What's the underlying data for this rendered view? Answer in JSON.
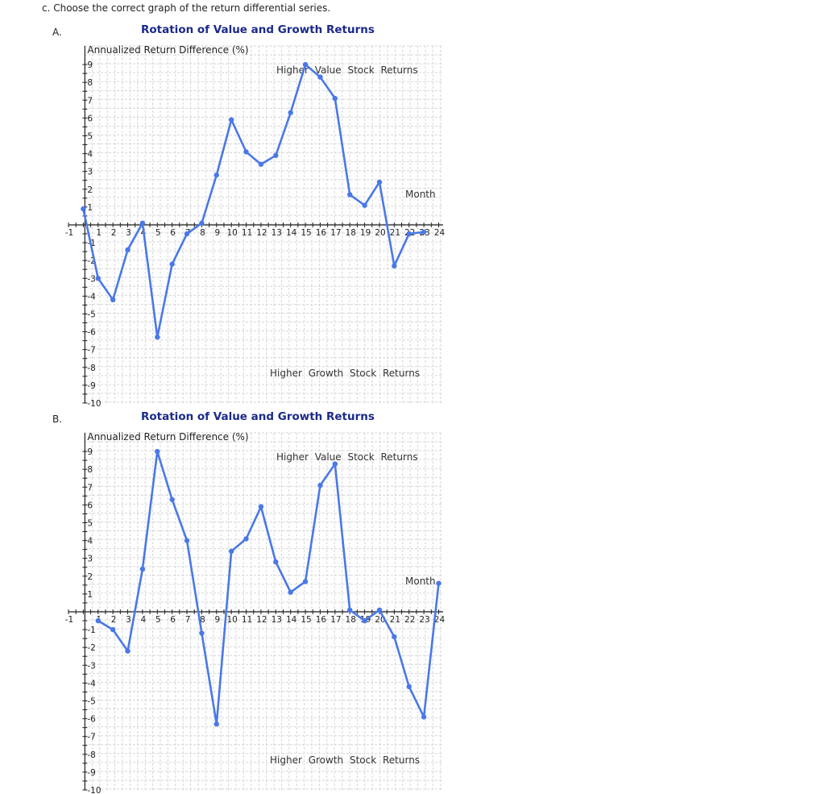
{
  "question": "c. Choose the correct graph of the return differential series.",
  "options": [
    {
      "label": "A."
    },
    {
      "label": "B."
    }
  ],
  "chart_data": [
    {
      "type": "line",
      "title": "Rotation of Value and Growth Returns",
      "ylabel": "Annualized Return Difference (%)",
      "xlabel": "Month",
      "annotations": [
        "Higher Value Stock Returns",
        "Higher Growth Stock Returns"
      ],
      "xlim": [
        -1,
        24.3
      ],
      "ylim": [
        -10,
        9
      ],
      "grid": true,
      "color": "#4a78e8",
      "x": [
        0,
        1,
        2,
        3,
        4,
        5,
        6,
        7,
        8,
        9,
        10,
        11,
        12,
        13,
        14,
        15,
        16,
        17,
        18,
        19,
        20,
        21,
        22,
        23
      ],
      "values": [
        0.9,
        -3.0,
        -4.2,
        -1.4,
        0.1,
        -6.3,
        -2.2,
        -0.5,
        0.1,
        2.8,
        5.9,
        4.1,
        3.4,
        3.9,
        6.3,
        9.0,
        8.3,
        7.1,
        1.7,
        1.1,
        2.4,
        -2.3,
        -0.5,
        -0.4
      ]
    },
    {
      "type": "line",
      "title": "Rotation of Value and Growth Returns",
      "ylabel": "Annualized Return Difference (%)",
      "xlabel": "Month",
      "annotations": [
        "Higher Value Stock Returns",
        "Higher Growth Stock Returns"
      ],
      "xlim": [
        -1,
        24.3
      ],
      "ylim": [
        -10,
        9
      ],
      "grid": true,
      "color": "#4a78e8",
      "x": [
        1,
        2,
        3,
        4,
        5,
        6,
        7,
        8,
        9,
        10,
        11,
        12,
        13,
        14,
        15,
        16,
        17,
        18,
        19,
        20,
        21,
        22,
        23,
        24
      ],
      "values": [
        -0.5,
        -1.0,
        -2.2,
        2.4,
        9.0,
        6.3,
        4.0,
        -1.2,
        -6.3,
        3.4,
        4.1,
        5.9,
        2.8,
        1.1,
        1.7,
        7.1,
        8.3,
        0.1,
        -0.5,
        0.1,
        -1.4,
        -4.2,
        -5.9,
        1.6
      ]
    }
  ]
}
